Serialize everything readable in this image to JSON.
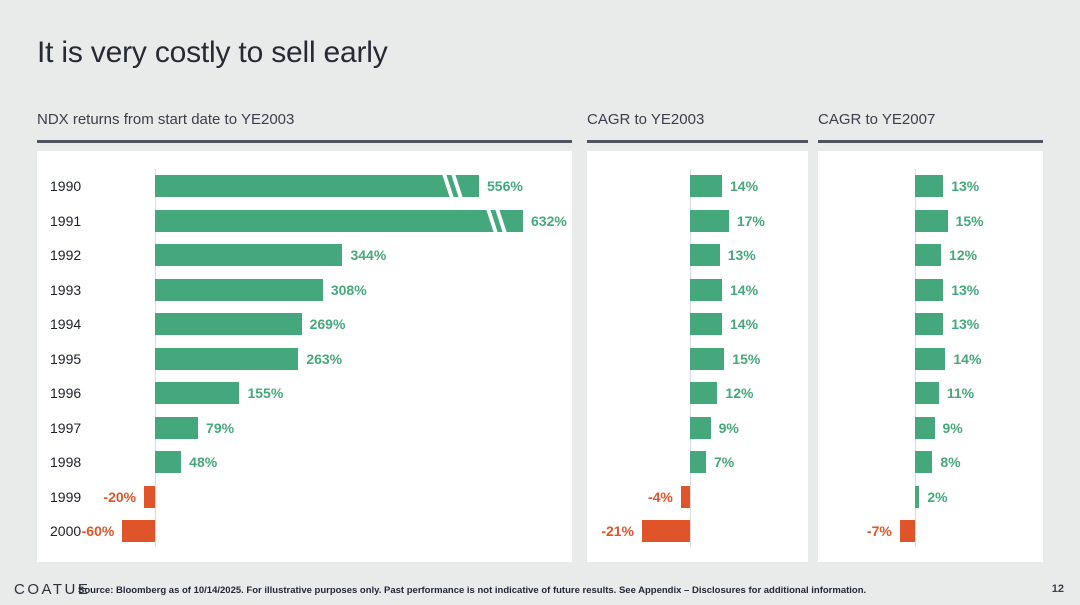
{
  "slide": {
    "title": "It is very costly to sell early",
    "logo": "COATUE",
    "footnote": "Source: Bloomberg as of 10/14/2025. For illustrative purposes only. Past performance is not indicative of future results. See Appendix – Disclosures for additional information.",
    "page_number": "12"
  },
  "colors": {
    "background": "#e9eaea",
    "card": "#ffffff",
    "positive": "#45a87c",
    "negative": "#e05429",
    "title_text": "#262a33",
    "header_text": "#3a3f49",
    "header_underline": "#4f545e",
    "year_text": "#1d2027",
    "axis_line": "#d9dbdf",
    "footer_text": "#232838"
  },
  "chart_data": [
    {
      "type": "bar",
      "orientation": "horizontal",
      "title": "NDX returns from start date to YE2003",
      "categories": [
        "1990",
        "1991",
        "1992",
        "1993",
        "1994",
        "1995",
        "1996",
        "1997",
        "1998",
        "1999",
        "2000"
      ],
      "values": [
        556,
        632,
        344,
        308,
        269,
        263,
        155,
        79,
        48,
        -20,
        -60
      ],
      "unit": "%",
      "value_labels": [
        "556%",
        "632%",
        "344%",
        "308%",
        "269%",
        "263%",
        "155%",
        "79%",
        "48%",
        "-20%",
        "-60%"
      ],
      "show_categories": true,
      "axis_break": {
        "indices": [
          0,
          1
        ]
      },
      "grid": false,
      "legend": false
    },
    {
      "type": "bar",
      "orientation": "horizontal",
      "title": "CAGR to YE2003",
      "categories": [
        "1990",
        "1991",
        "1992",
        "1993",
        "1994",
        "1995",
        "1996",
        "1997",
        "1998",
        "1999",
        "2000"
      ],
      "values": [
        14,
        17,
        13,
        14,
        14,
        15,
        12,
        9,
        7,
        -4,
        -21
      ],
      "unit": "%",
      "value_labels": [
        "14%",
        "17%",
        "13%",
        "14%",
        "14%",
        "15%",
        "12%",
        "9%",
        "7%",
        "-4%",
        "-21%"
      ],
      "show_categories": false,
      "grid": false,
      "legend": false
    },
    {
      "type": "bar",
      "orientation": "horizontal",
      "title": "CAGR to YE2007",
      "categories": [
        "1990",
        "1991",
        "1992",
        "1993",
        "1994",
        "1995",
        "1996",
        "1997",
        "1998",
        "1999",
        "2000"
      ],
      "values": [
        13,
        15,
        12,
        13,
        13,
        14,
        11,
        9,
        8,
        2,
        -7
      ],
      "unit": "%",
      "value_labels": [
        "13%",
        "15%",
        "12%",
        "13%",
        "13%",
        "14%",
        "11%",
        "9%",
        "8%",
        "2%",
        "-7%"
      ],
      "show_categories": false,
      "grid": false,
      "legend": false
    }
  ]
}
